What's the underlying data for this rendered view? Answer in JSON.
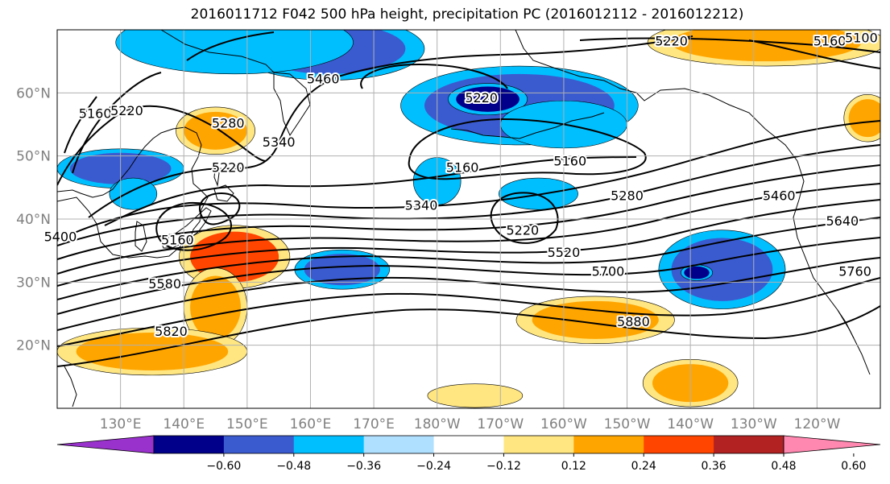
{
  "title": "2016011712 F042 500 hPa height, precipitation PC (2016012112 - 2016012212)",
  "map": {
    "lon_range_deg_east": [
      120,
      250
    ],
    "lat_range": [
      10,
      70
    ],
    "lat_labels": [
      {
        "lat": 60,
        "text": "60°N"
      },
      {
        "lat": 50,
        "text": "50°N"
      },
      {
        "lat": 40,
        "text": "40°N"
      },
      {
        "lat": 30,
        "text": "30°N"
      },
      {
        "lat": 20,
        "text": "20°N"
      }
    ],
    "lon_labels": [
      {
        "lon": 130,
        "text": "130°E"
      },
      {
        "lon": 140,
        "text": "140°E"
      },
      {
        "lon": 150,
        "text": "150°E"
      },
      {
        "lon": 160,
        "text": "160°E"
      },
      {
        "lon": 170,
        "text": "170°E"
      },
      {
        "lon": 180,
        "text": "180°W"
      },
      {
        "lon": 190,
        "text": "170°W"
      },
      {
        "lon": 200,
        "text": "160°W"
      },
      {
        "lon": 210,
        "text": "150°W"
      },
      {
        "lon": 220,
        "text": "140°W"
      },
      {
        "lon": 230,
        "text": "130°W"
      },
      {
        "lon": 240,
        "text": "120°W"
      }
    ],
    "gridlines": true,
    "contour_labels": [
      {
        "text": "5160",
        "lon": 126,
        "lat": 56
      },
      {
        "text": "5220",
        "lon": 131,
        "lat": 56.5
      },
      {
        "text": "5280",
        "lon": 147,
        "lat": 54.5
      },
      {
        "text": "5340",
        "lon": 155,
        "lat": 51.5
      },
      {
        "text": "5460",
        "lon": 162,
        "lat": 61.5
      },
      {
        "text": "5220",
        "lon": 147,
        "lat": 47.5
      },
      {
        "text": "5160",
        "lon": 139,
        "lat": 36
      },
      {
        "text": "5580",
        "lon": 137,
        "lat": 29
      },
      {
        "text": "5820",
        "lon": 138,
        "lat": 21.5
      },
      {
        "text": "5220",
        "lon": 187,
        "lat": 58.5
      },
      {
        "text": "5160",
        "lon": 184,
        "lat": 47.5
      },
      {
        "text": "5340",
        "lon": 177.5,
        "lat": 41.5
      },
      {
        "text": "5220",
        "lon": 193.5,
        "lat": 37.5
      },
      {
        "text": "5160",
        "lon": 201,
        "lat": 48.5
      },
      {
        "text": "5280",
        "lon": 210,
        "lat": 43
      },
      {
        "text": "5520",
        "lon": 200,
        "lat": 34
      },
      {
        "text": "5700",
        "lon": 207,
        "lat": 31
      },
      {
        "text": "5880",
        "lon": 211,
        "lat": 23
      },
      {
        "text": "5220",
        "lon": 217,
        "lat": 67.5
      },
      {
        "text": "5160",
        "lon": 242,
        "lat": 67.5
      },
      {
        "text": "5100",
        "lon": 247,
        "lat": 68
      },
      {
        "text": "5460",
        "lon": 234,
        "lat": 43
      },
      {
        "text": "5640",
        "lon": 244,
        "lat": 39
      },
      {
        "text": "5760",
        "lon": 246,
        "lat": 31
      },
      {
        "text": "5400",
        "lon": 120.5,
        "lat": 36.5
      }
    ],
    "precip_patches": [
      {
        "value": "-0.36",
        "lon": 163,
        "lat": 67,
        "rx": 12,
        "ry": 4
      },
      {
        "value": "-0.24",
        "lon": 148,
        "lat": 68,
        "rx": 15,
        "ry": 4
      },
      {
        "value": "-0.36",
        "lon": 130,
        "lat": 48,
        "rx": 8,
        "ry": 2.5
      },
      {
        "value": "-0.24",
        "lon": 132,
        "lat": 44,
        "rx": 3,
        "ry": 2
      },
      {
        "value": "0.36",
        "lon": 145,
        "lat": 54,
        "rx": 5,
        "ry": 3
      },
      {
        "value": "-0.36",
        "lon": 193,
        "lat": 58,
        "rx": 15,
        "ry": 5
      },
      {
        "value": "-0.48",
        "lon": 188,
        "lat": 59,
        "rx": 5,
        "ry": 2
      },
      {
        "value": "-0.24",
        "lon": 200,
        "lat": 55,
        "rx": 8,
        "ry": 3
      },
      {
        "value": "-0.24",
        "lon": 180,
        "lat": 46,
        "rx": 3,
        "ry": 3
      },
      {
        "value": "-0.24",
        "lon": 196,
        "lat": 44,
        "rx": 5,
        "ry": 2
      },
      {
        "value": "0.48",
        "lon": 148,
        "lat": 34,
        "rx": 7,
        "ry": 4
      },
      {
        "value": "0.36",
        "lon": 145,
        "lat": 26,
        "rx": 4,
        "ry": 5
      },
      {
        "value": "0.36",
        "lon": 135,
        "lat": 19,
        "rx": 12,
        "ry": 3
      },
      {
        "value": "-0.36",
        "lon": 165,
        "lat": 32,
        "rx": 6,
        "ry": 2.5
      },
      {
        "value": "0.36",
        "lon": 205,
        "lat": 24,
        "rx": 10,
        "ry": 3
      },
      {
        "value": "0.36",
        "lon": 220,
        "lat": 14,
        "rx": 6,
        "ry": 3
      },
      {
        "value": "-0.36",
        "lon": 225,
        "lat": 32,
        "rx": 8,
        "ry": 5
      },
      {
        "value": "-0.48",
        "lon": 221,
        "lat": 31.5,
        "rx": 2,
        "ry": 1
      },
      {
        "value": "0.36",
        "lon": 232,
        "lat": 68,
        "rx": 15,
        "ry": 3
      },
      {
        "value": "0.36",
        "lon": 248,
        "lat": 56,
        "rx": 3,
        "ry": 3
      },
      {
        "value": "0.24",
        "lon": 186,
        "lat": 12,
        "rx": 6,
        "ry": 1.5
      }
    ]
  },
  "colorbar": {
    "ticks": [
      "−0.60",
      "−0.48",
      "−0.36",
      "−0.24",
      "−0.12",
      "0.12",
      "0.24",
      "0.36",
      "0.48",
      "0.60"
    ],
    "colors": [
      "#9932CC",
      "#00008B",
      "#3A5BD0",
      "#00BFFF",
      "#B0E0FF",
      "#FFFFFF",
      "#FFE680",
      "#FFA500",
      "#FF4500",
      "#B22222",
      "#FF88B0"
    ]
  },
  "colors": {
    "contour": "#000000",
    "coast": "#000000",
    "grid": "#b0b0b0",
    "axis_label": "#808080"
  }
}
